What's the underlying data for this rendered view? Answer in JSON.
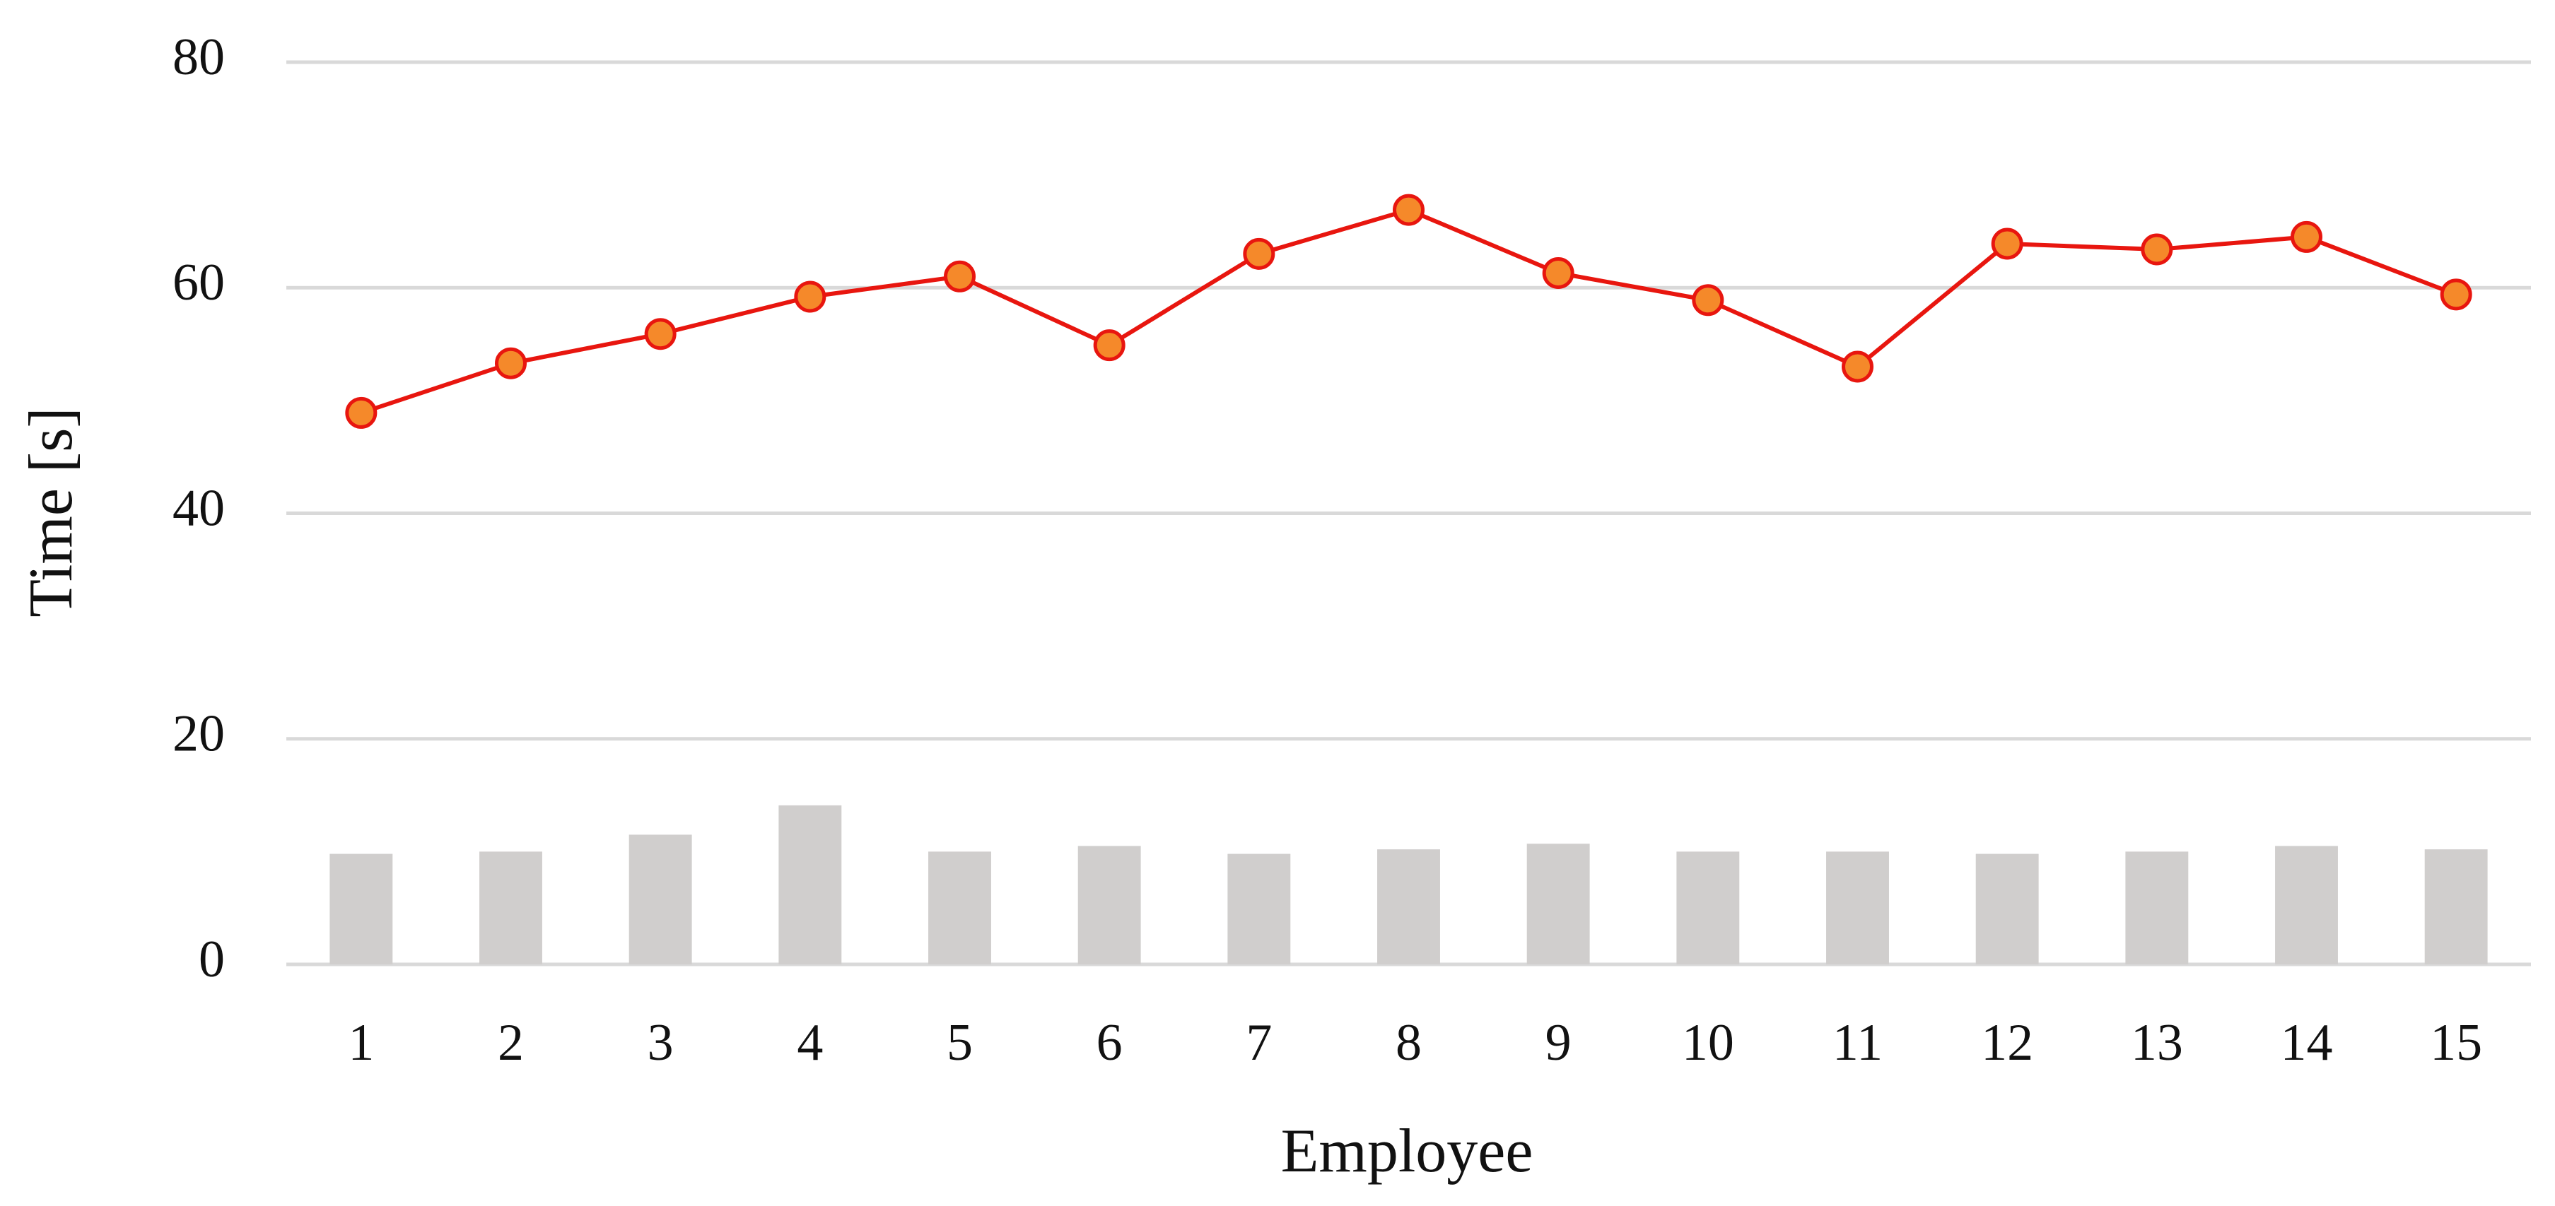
{
  "chart_data": {
    "type": "combo",
    "x_label": "Employee",
    "y_label": "Time [s]",
    "categories": [
      "1",
      "2",
      "3",
      "4",
      "5",
      "6",
      "7",
      "8",
      "9",
      "10",
      "11",
      "12",
      "13",
      "14",
      "15"
    ],
    "series": [
      {
        "type": "bar",
        "color": "#d0cecd",
        "values": [
          9.8,
          10.0,
          11.5,
          14.1,
          10.0,
          10.5,
          9.8,
          10.2,
          10.7,
          10.0,
          10.0,
          9.8,
          10.0,
          10.5,
          10.2
        ]
      },
      {
        "type": "line",
        "color": "#e8160f",
        "marker_color": "#f5892a",
        "values": [
          48.9,
          53.3,
          55.9,
          59.2,
          61.0,
          54.9,
          63.0,
          66.9,
          61.3,
          58.9,
          53.0,
          63.9,
          63.4,
          64.5,
          59.4
        ]
      }
    ],
    "ylim": [
      0,
      80
    ],
    "yticks": [
      0,
      20,
      40,
      60,
      80
    ],
    "grid": true
  }
}
